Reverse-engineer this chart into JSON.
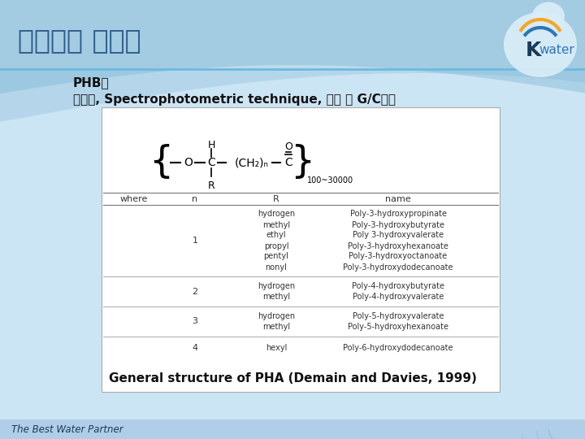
{
  "title": "생물학적 인제거",
  "phb_line1": "PHB는",
  "phb_line2": "염색법, Spectrophotometric technique, 추출 후 G/C분석",
  "caption": "General structure of PHA (Demain and Davies, 1999)",
  "footer": "The Best Water Partner",
  "bg_top": "#d6ecf8",
  "bg_bottom": "#b0cfe8",
  "title_color": "#2c5a8a",
  "table_headers": [
    "where",
    "n",
    "R",
    "name"
  ],
  "r_vals_1": [
    "hydrogen",
    "methyl",
    "ethyl",
    "propyl",
    "pentyl",
    "nonyl"
  ],
  "n_vals_1": [
    "Poly-3-hydroxypropinate",
    "Poly-3-hydroxybutyrate",
    "Poly 3-hydroxyvalerate",
    "Poly-3-hydroxyhexanoate",
    "Poly-3-hydroxyoctanoate",
    "Poly-3-hydroxydodecanoate"
  ],
  "r_vals_2": [
    "hydrogen",
    "methyl"
  ],
  "n_vals_2": [
    "Poly-4-hydroxybutyrate",
    "Poly-4-hydroxyvalerate"
  ],
  "r_vals_3": [
    "hydrogen",
    "methyl"
  ],
  "n_vals_3": [
    "Poly-5-hydroxyvalerate",
    "Poly-5-hydroxyhexanoate"
  ],
  "r_vals_4": [
    "hexyl"
  ],
  "n_vals_4": [
    "Poly-6-hydroxydodecanoate"
  ],
  "subscript": "100~30000",
  "kwater_orange": "#f5a623",
  "kwater_blue": "#2e75b6",
  "kwater_lightblue": "#4da6d9"
}
